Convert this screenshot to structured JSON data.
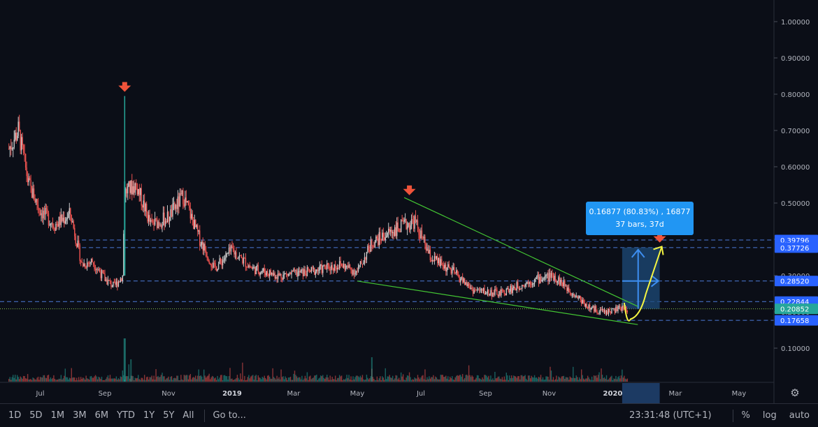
{
  "chart_data": {
    "type": "candlestick",
    "title": "",
    "xlabel": "",
    "ylabel": "",
    "ylim": [
      0.08,
      1.05
    ],
    "y_ticks": [
      "0.10000",
      "0.20000",
      "0.30000",
      "0.40000",
      "0.50000",
      "0.60000",
      "0.70000",
      "0.80000",
      "0.90000",
      "1.00000"
    ],
    "x_ticks": [
      {
        "label": "Jul",
        "year": false
      },
      {
        "label": "Sep",
        "year": false
      },
      {
        "label": "Nov",
        "year": false
      },
      {
        "label": "2019",
        "year": true
      },
      {
        "label": "Mar",
        "year": false
      },
      {
        "label": "May",
        "year": false
      },
      {
        "label": "Jul",
        "year": false
      },
      {
        "label": "Sep",
        "year": false
      },
      {
        "label": "Nov",
        "year": false
      },
      {
        "label": "2020",
        "year": true
      },
      {
        "label": "Mar",
        "year": false
      },
      {
        "label": "May",
        "year": false
      }
    ],
    "price_path": [
      [
        "2018-06-01",
        0.65
      ],
      [
        "2018-06-10",
        0.7
      ],
      [
        "2018-06-20",
        0.55
      ],
      [
        "2018-07-01",
        0.48
      ],
      [
        "2018-07-15",
        0.44
      ],
      [
        "2018-07-30",
        0.47
      ],
      [
        "2018-08-10",
        0.33
      ],
      [
        "2018-08-20",
        0.34
      ],
      [
        "2018-09-01",
        0.29
      ],
      [
        "2018-09-10",
        0.27
      ],
      [
        "2018-09-18",
        0.3
      ],
      [
        "2018-09-20",
        0.53
      ],
      [
        "2018-10-01",
        0.55
      ],
      [
        "2018-10-15",
        0.44
      ],
      [
        "2018-11-01",
        0.46
      ],
      [
        "2018-11-15",
        0.52
      ],
      [
        "2018-12-01",
        0.4
      ],
      [
        "2018-12-15",
        0.32
      ],
      [
        "2019-01-01",
        0.37
      ],
      [
        "2019-01-20",
        0.32
      ],
      [
        "2019-02-15",
        0.3
      ],
      [
        "2019-03-15",
        0.31
      ],
      [
        "2019-04-15",
        0.33
      ],
      [
        "2019-05-01",
        0.31
      ],
      [
        "2019-05-15",
        0.39
      ],
      [
        "2019-06-01",
        0.42
      ],
      [
        "2019-06-25",
        0.45
      ],
      [
        "2019-07-10",
        0.35
      ],
      [
        "2019-08-01",
        0.31
      ],
      [
        "2019-08-20",
        0.26
      ],
      [
        "2019-09-15",
        0.25
      ],
      [
        "2019-10-01",
        0.27
      ],
      [
        "2019-10-20",
        0.29
      ],
      [
        "2019-11-05",
        0.3
      ],
      [
        "2019-11-25",
        0.25
      ],
      [
        "2019-12-10",
        0.21
      ],
      [
        "2019-12-25",
        0.2
      ],
      [
        "2020-01-10",
        0.21
      ],
      [
        "2020-01-15",
        0.2085
      ]
    ],
    "spike": {
      "date": "2018-09-20",
      "high": 0.795
    },
    "volume_peak_date": "2018-09-20",
    "price_levels": [
      {
        "label": "0.39796",
        "value": 0.39796,
        "style": "dashed",
        "tag_color": "#2962ff"
      },
      {
        "label": "0.37726",
        "value": 0.37726,
        "style": "dashed",
        "tag_color": "#2962ff"
      },
      {
        "label": "0.28520",
        "value": 0.2852,
        "style": "dashed",
        "tag_color": "#2962ff"
      },
      {
        "label": "0.22844",
        "value": 0.22844,
        "style": "dashed",
        "tag_color": "#2962ff"
      },
      {
        "label": "0.20852",
        "value": 0.20852,
        "style": "dotted",
        "tag_color": "#26a69a"
      },
      {
        "label": "0.17658",
        "value": 0.17658,
        "style": "dashed",
        "tag_color": "#2962ff"
      }
    ],
    "wedge_lines": [
      {
        "from": [
          "2019-06-15",
          0.515
        ],
        "to": [
          "2020-01-25",
          0.215
        ],
        "color": "#43c533"
      },
      {
        "from": [
          "2019-05-01",
          0.285
        ],
        "to": [
          "2020-01-25",
          0.165
        ],
        "color": "#43c533"
      }
    ],
    "arrow_markers": [
      {
        "date": "2018-09-20",
        "value": 0.795,
        "color": "#f0533a"
      },
      {
        "date": "2019-06-20",
        "value": 0.51,
        "color": "#f0533a"
      },
      {
        "date": "2020-02-15",
        "value": 0.3795,
        "color": "#f0533a"
      }
    ],
    "projection_color": "#f5f542",
    "measure": {
      "line1": "0.16877 (80.83%) , 16877",
      "line2": "37 bars, 37d"
    },
    "colors": {
      "up": "#26a69a",
      "down": "#ef5350",
      "candle_light": "#c9c9c9",
      "background": "#0b0e17",
      "level_line": "#4c7bd9",
      "measure_fill": "#2196f3"
    }
  },
  "toolbar": {
    "timeframes": [
      "1D",
      "5D",
      "1M",
      "3M",
      "6M",
      "YTD",
      "1Y",
      "5Y",
      "All"
    ],
    "goto": "Go to...",
    "clock": "23:31:48 (UTC+1)",
    "percent": "%",
    "log": "log",
    "auto": "auto"
  },
  "settings_icon": "gear-icon"
}
